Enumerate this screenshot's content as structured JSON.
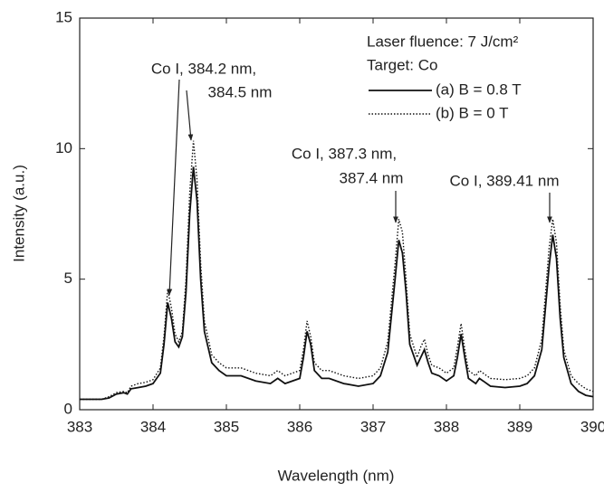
{
  "chart_data": {
    "type": "line",
    "xlabel": "Wavelength (nm)",
    "ylabel": "Intensity (a.u.)",
    "xlim": [
      383,
      390
    ],
    "xticks": [
      383,
      384,
      385,
      386,
      387,
      388,
      389,
      390
    ],
    "ylim": [
      0,
      15
    ],
    "yticks": [
      0,
      5,
      10,
      15
    ],
    "legend_title": [
      "Laser fluence: 7 J/cm²",
      "Target: Co"
    ],
    "legend_position": "upper right",
    "annotations": [
      "Co I, 384.2 nm,",
      "384.5 nm",
      "Co I, 387.3 nm,",
      "387.4 nm",
      "Co I, 389.41 nm"
    ],
    "x": [
      383.0,
      383.3,
      383.4,
      383.5,
      383.6,
      383.65,
      383.7,
      383.8,
      383.9,
      384.0,
      384.1,
      384.15,
      384.2,
      384.25,
      384.3,
      384.35,
      384.4,
      384.45,
      384.5,
      384.55,
      384.6,
      384.65,
      384.7,
      384.8,
      384.9,
      385.0,
      385.2,
      385.4,
      385.6,
      385.7,
      385.8,
      386.0,
      386.05,
      386.1,
      386.15,
      386.2,
      386.3,
      386.4,
      386.6,
      386.8,
      387.0,
      387.1,
      387.2,
      387.3,
      387.35,
      387.4,
      387.45,
      387.5,
      387.6,
      387.65,
      387.7,
      387.75,
      387.8,
      387.9,
      388.0,
      388.1,
      388.15,
      388.2,
      388.25,
      388.3,
      388.4,
      388.45,
      388.5,
      388.6,
      388.8,
      389.0,
      389.1,
      389.2,
      389.3,
      389.4,
      389.45,
      389.5,
      389.55,
      389.6,
      389.7,
      389.8,
      389.9,
      390.0
    ],
    "series": [
      {
        "name": "(a) B = 0.8 T",
        "color": "#111111",
        "line_style": "solid",
        "values": [
          0.4,
          0.4,
          0.45,
          0.6,
          0.65,
          0.6,
          0.8,
          0.85,
          0.9,
          1.0,
          1.4,
          2.5,
          4.1,
          3.5,
          2.6,
          2.4,
          2.8,
          4.5,
          7.5,
          9.3,
          8.0,
          5.0,
          3.0,
          1.8,
          1.5,
          1.3,
          1.3,
          1.1,
          1.0,
          1.2,
          1.0,
          1.2,
          2.0,
          3.0,
          2.5,
          1.5,
          1.2,
          1.2,
          1.0,
          0.9,
          1.0,
          1.3,
          2.2,
          5.0,
          6.5,
          6.0,
          4.5,
          2.5,
          1.7,
          2.0,
          2.3,
          1.8,
          1.4,
          1.3,
          1.1,
          1.3,
          2.0,
          2.9,
          2.0,
          1.2,
          1.0,
          1.2,
          1.1,
          0.9,
          0.85,
          0.9,
          1.0,
          1.3,
          2.3,
          5.5,
          6.7,
          5.8,
          3.5,
          2.0,
          1.0,
          0.7,
          0.55,
          0.5
        ]
      },
      {
        "name": "(b) B = 0 T",
        "color": "#111111",
        "line_style": "dotted",
        "values": [
          0.4,
          0.4,
          0.5,
          0.65,
          0.7,
          0.65,
          0.9,
          1.0,
          1.05,
          1.15,
          1.6,
          2.8,
          4.6,
          3.9,
          2.9,
          2.6,
          3.0,
          5.0,
          8.3,
          10.3,
          8.8,
          5.6,
          3.4,
          2.1,
          1.8,
          1.6,
          1.6,
          1.4,
          1.3,
          1.5,
          1.3,
          1.5,
          2.3,
          3.4,
          2.8,
          1.8,
          1.5,
          1.5,
          1.3,
          1.2,
          1.3,
          1.6,
          2.6,
          5.6,
          7.3,
          6.8,
          5.0,
          2.9,
          2.0,
          2.4,
          2.7,
          2.1,
          1.7,
          1.6,
          1.4,
          1.6,
          2.4,
          3.3,
          2.3,
          1.5,
          1.3,
          1.5,
          1.4,
          1.2,
          1.15,
          1.2,
          1.3,
          1.6,
          2.7,
          6.2,
          7.3,
          6.4,
          4.0,
          2.3,
          1.3,
          1.0,
          0.8,
          0.7
        ]
      }
    ]
  }
}
